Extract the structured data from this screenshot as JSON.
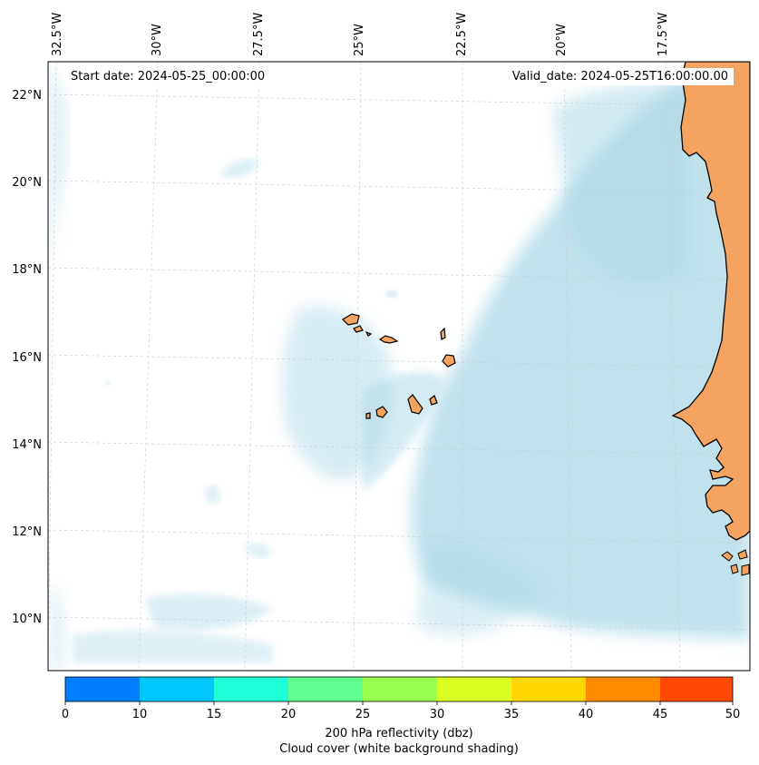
{
  "start_date": "Start date: 2024-05-25_00:00:00",
  "valid_date": "Valid_date: 2024-05-25T16:00:00.00",
  "lon_labels": [
    "32.5°W",
    "30°W",
    "27.5°W",
    "25°W",
    "22.5°W",
    "20°W",
    "17.5°W"
  ],
  "lat_labels": [
    "22°N",
    "20°N",
    "18°N",
    "16°N",
    "14°N",
    "12°N",
    "10°N"
  ],
  "colorbar": {
    "ticks": [
      "0",
      "10",
      "15",
      "20",
      "25",
      "30",
      "35",
      "40",
      "45",
      "50"
    ],
    "colors": [
      "#0080ff",
      "#00c8ff",
      "#20ffd8",
      "#60ff90",
      "#98ff50",
      "#d8ff20",
      "#ffd800",
      "#ff8c00",
      "#ff4800"
    ],
    "title": "200 hPa reflectivity (dbz)",
    "subtitle": "Cloud cover (white background shading)"
  },
  "map_colors": {
    "land": "#f4a460",
    "cloud": "#add8e6",
    "ocean": "#ffffff"
  }
}
